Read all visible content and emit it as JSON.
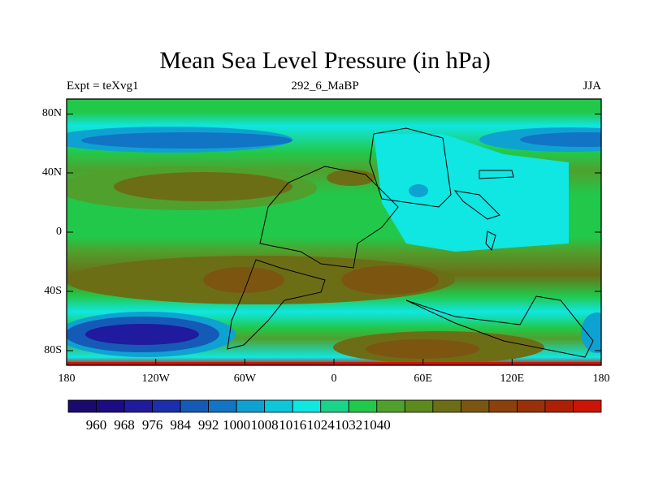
{
  "title": "Mean Sea Level Pressure (in hPa)",
  "left_label": "Expt = teXvg1",
  "center_label": "292_6_MaBP",
  "right_label": "JJA",
  "lat_ticks": [
    "80N",
    "40N",
    "0",
    "40S",
    "80S"
  ],
  "lon_ticks": [
    "180",
    "120W",
    "60W",
    "0",
    "60E",
    "120E",
    "180"
  ],
  "colorbar": {
    "labels": [
      "960",
      "968",
      "976",
      "984",
      "992",
      "1000",
      "1008",
      "1016",
      "1024",
      "1032",
      "1040"
    ],
    "colors": [
      "#1a0a6e",
      "#1d0b86",
      "#1f1a9e",
      "#1a2eae",
      "#165ab8",
      "#1274c4",
      "#0ea2d2",
      "#0cc6dc",
      "#10e6e2",
      "#1ad48a",
      "#22c84a",
      "#50a02e",
      "#5c8a1e",
      "#6c6e16",
      "#7c5610",
      "#8c400c",
      "#9a3009",
      "#ae2006",
      "#cc1404"
    ]
  },
  "map": {
    "variable": "Mean Sea Level Pressure",
    "units": "hPa",
    "season": "JJA"
  }
}
